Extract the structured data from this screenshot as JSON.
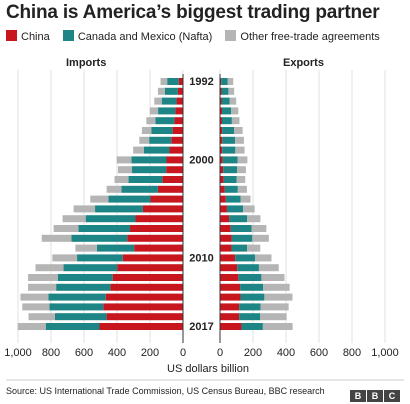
{
  "title": "China is America’s biggest trading partner",
  "legend": [
    {
      "name": "China",
      "color": "#c8161e"
    },
    {
      "name": "Canada and Mexico (Nafta)",
      "color": "#1d8585"
    },
    {
      "name": "Other free-trade agreements",
      "color": "#b5b5b5"
    }
  ],
  "source": "Source: US International Trade Commission, US Census Bureau, BBC research",
  "logo_letters": [
    "B",
    "B",
    "C"
  ],
  "chart_data": {
    "type": "bar",
    "orientation": "horizontal",
    "panels": [
      "Imports",
      "Exports"
    ],
    "years": [
      1992,
      1993,
      1994,
      1995,
      1996,
      1997,
      1998,
      1999,
      2000,
      2001,
      2002,
      2003,
      2004,
      2005,
      2006,
      2007,
      2008,
      2009,
      2010,
      2011,
      2012,
      2013,
      2014,
      2015,
      2016,
      2017
    ],
    "year_labels_shown": [
      1992,
      2000,
      2010,
      2017
    ],
    "xlabel": "US dollars billion",
    "xlim": [
      0,
      1000
    ],
    "ticks": [
      0,
      200,
      400,
      600,
      800,
      1000
    ],
    "tick_labels": [
      "0",
      "200",
      "400",
      "600",
      "800",
      "1,000"
    ],
    "imports": {
      "China": [
        26,
        31,
        39,
        46,
        52,
        63,
        71,
        82,
        100,
        102,
        125,
        152,
        197,
        243,
        288,
        321,
        338,
        296,
        365,
        399,
        426,
        440,
        468,
        483,
        463,
        506
      ],
      "Nafta": [
        70,
        79,
        90,
        105,
        115,
        128,
        134,
        155,
        212,
        207,
        205,
        221,
        255,
        290,
        302,
        313,
        338,
        226,
        277,
        325,
        333,
        329,
        347,
        326,
        313,
        326
      ],
      "Other": [
        40,
        42,
        45,
        50,
        55,
        58,
        60,
        65,
        90,
        85,
        85,
        90,
        110,
        130,
        140,
        150,
        180,
        130,
        150,
        170,
        180,
        170,
        170,
        165,
        160,
        170
      ]
    },
    "exports": {
      "China": [
        7,
        9,
        9,
        12,
        12,
        13,
        14,
        13,
        16,
        19,
        22,
        28,
        35,
        42,
        55,
        65,
        70,
        70,
        92,
        104,
        111,
        122,
        124,
        116,
        116,
        130
      ],
      "Nafta": [
        40,
        42,
        50,
        56,
        60,
        72,
        78,
        80,
        90,
        84,
        78,
        80,
        90,
        98,
        110,
        126,
        126,
        94,
        120,
        132,
        140,
        140,
        145,
        130,
        128,
        130
      ],
      "Other": [
        33,
        35,
        39,
        43,
        46,
        52,
        53,
        56,
        60,
        54,
        53,
        55,
        60,
        70,
        80,
        90,
        100,
        80,
        100,
        120,
        140,
        160,
        170,
        170,
        160,
        180
      ]
    }
  }
}
